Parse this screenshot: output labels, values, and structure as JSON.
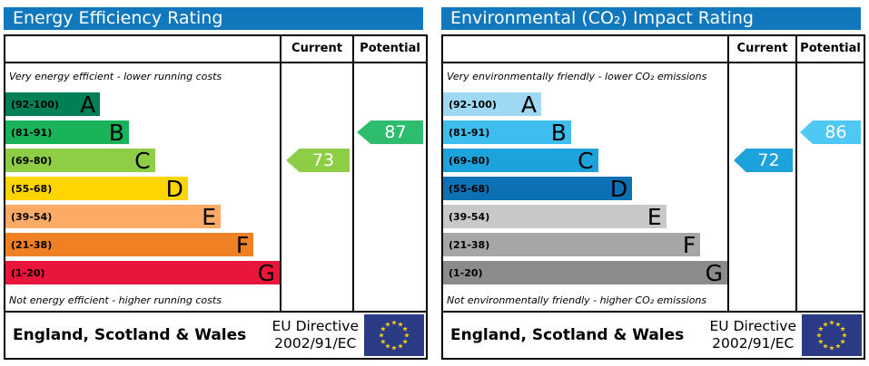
{
  "eu_flag": {
    "bg": "#2b3a85",
    "star_color": "#f7d117"
  },
  "panels": [
    {
      "title": "Energy Efficiency Rating",
      "title_bg": "#1178be",
      "columns": {
        "current": "Current",
        "potential": "Potential"
      },
      "top_caption": "Very energy efficient - lower running costs",
      "bottom_caption": "Not energy efficient - higher running costs",
      "bands": [
        {
          "range": "(92-100)",
          "letter": "A",
          "color": "#008054",
          "width_pct": 34.5
        },
        {
          "range": "(81-91)",
          "letter": "B",
          "color": "#19b459",
          "width_pct": 45
        },
        {
          "range": "(69-80)",
          "letter": "C",
          "color": "#8dce46",
          "width_pct": 54.5
        },
        {
          "range": "(55-68)",
          "letter": "D",
          "color": "#ffd500",
          "width_pct": 66.5
        },
        {
          "range": "(39-54)",
          "letter": "E",
          "color": "#fcaa65",
          "width_pct": 78.5
        },
        {
          "range": "(21-38)",
          "letter": "F",
          "color": "#ef8023",
          "width_pct": 90.5
        },
        {
          "range": "(1-20)",
          "letter": "G",
          "color": "#e9153b",
          "width_pct": 100
        }
      ],
      "current": {
        "value": 73,
        "band_index": 2,
        "color": "#8dce46"
      },
      "potential": {
        "value": 87,
        "band_index": 1,
        "color": "#2ebd6e"
      },
      "footer": {
        "region": "England, Scotland & Wales",
        "directive_line1": "EU Directive",
        "directive_line2": "2002/91/EC"
      }
    },
    {
      "title": "Environmental (CO₂) Impact Rating",
      "title_bg": "#1178be",
      "columns": {
        "current": "Current",
        "potential": "Potential"
      },
      "top_caption": "Very environmentally friendly - lower CO₂ emissions",
      "bottom_caption": "Not environmentally friendly - higher CO₂ emissions",
      "bands": [
        {
          "range": "(92-100)",
          "letter": "A",
          "color": "#9ed8f2",
          "width_pct": 34.5
        },
        {
          "range": "(81-91)",
          "letter": "B",
          "color": "#3ebeee",
          "width_pct": 45
        },
        {
          "range": "(69-80)",
          "letter": "C",
          "color": "#1ca3dc",
          "width_pct": 54.5
        },
        {
          "range": "(55-68)",
          "letter": "D",
          "color": "#0b71b4",
          "width_pct": 66.5
        },
        {
          "range": "(39-54)",
          "letter": "E",
          "color": "#c8c8c8",
          "width_pct": 78.5
        },
        {
          "range": "(21-38)",
          "letter": "F",
          "color": "#a6a6a6",
          "width_pct": 90.5
        },
        {
          "range": "(1-20)",
          "letter": "G",
          "color": "#8b8b8b",
          "width_pct": 100
        }
      ],
      "current": {
        "value": 72,
        "band_index": 2,
        "color": "#1ca3dc"
      },
      "potential": {
        "value": 86,
        "band_index": 1,
        "color": "#4fc8f3"
      },
      "footer": {
        "region": "England, Scotland & Wales",
        "directive_line1": "EU Directive",
        "directive_line2": "2002/91/EC"
      }
    }
  ],
  "chart_data": [
    {
      "type": "bar",
      "title": "Energy Efficiency Rating",
      "categories": [
        "A (92-100)",
        "B (81-91)",
        "C (69-80)",
        "D (55-68)",
        "E (39-54)",
        "F (21-38)",
        "G (1-20)"
      ],
      "series": [
        {
          "name": "Current",
          "values": [
            73
          ],
          "band": "C"
        },
        {
          "name": "Potential",
          "values": [
            87
          ],
          "band": "B"
        }
      ],
      "annotations": [
        "Very energy efficient - lower running costs",
        "Not energy efficient - higher running costs"
      ],
      "footer": "England, Scotland & Wales — EU Directive 2002/91/EC",
      "value_range": [
        1,
        100
      ]
    },
    {
      "type": "bar",
      "title": "Environmental (CO₂) Impact Rating",
      "categories": [
        "A (92-100)",
        "B (81-91)",
        "C (69-80)",
        "D (55-68)",
        "E (39-54)",
        "F (21-38)",
        "G (1-20)"
      ],
      "series": [
        {
          "name": "Current",
          "values": [
            72
          ],
          "band": "C"
        },
        {
          "name": "Potential",
          "values": [
            86
          ],
          "band": "B"
        }
      ],
      "annotations": [
        "Very environmentally friendly - lower CO₂ emissions",
        "Not environmentally friendly - higher CO₂ emissions"
      ],
      "footer": "England, Scotland & Wales — EU Directive 2002/91/EC",
      "value_range": [
        1,
        100
      ]
    }
  ]
}
